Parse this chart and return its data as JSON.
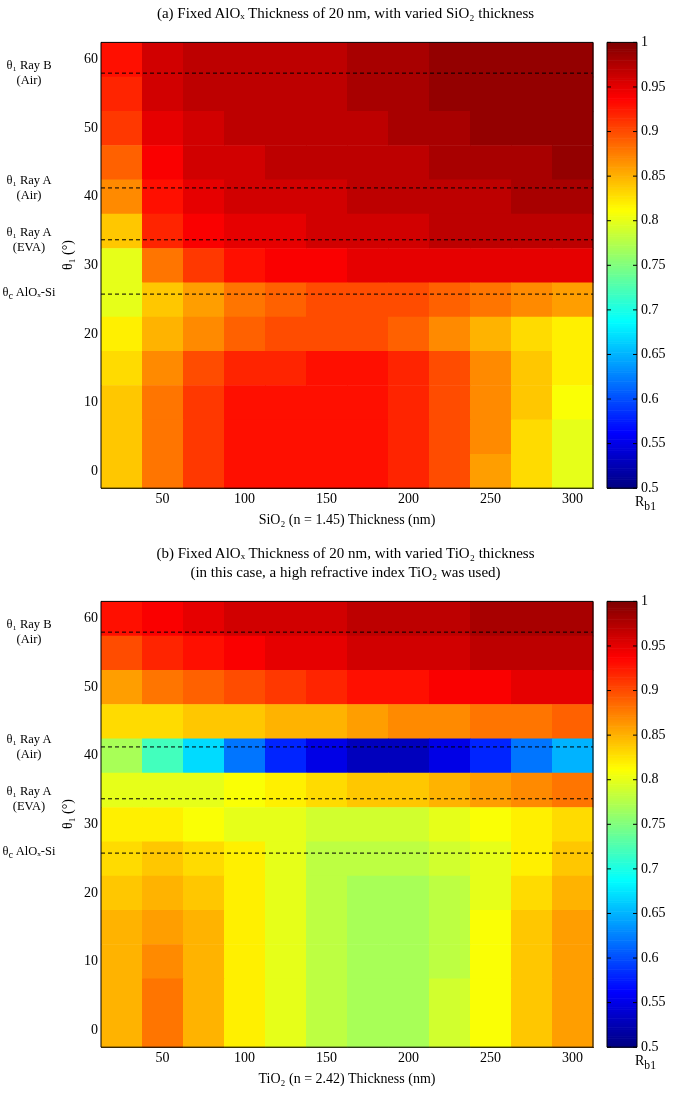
{
  "chart_data": [
    {
      "type": "heatmap",
      "title": "(a)  Fixed AlOₓ Thickness of 20 nm, with varied SiO₂ thickness",
      "xlabel": "SiO₂ (n = 1.45) Thickness (nm)",
      "ylabel": "θ₁ (°)",
      "clabel": "R$_{b1}$",
      "categories": [
        null,
        "50",
        null,
        "100",
        null,
        "150",
        null,
        "200",
        null,
        "250",
        null,
        "300"
      ],
      "y_categories": [
        "60",
        null,
        "50",
        null,
        "40",
        null,
        "30",
        null,
        "20",
        null,
        "10",
        null,
        "0"
      ],
      "clim": [
        0.5,
        1
      ],
      "cticks": [
        0.5,
        0.55,
        0.6,
        0.65,
        0.7,
        0.75,
        0.8,
        0.85,
        0.9,
        0.95,
        1
      ],
      "cells": [
        [
          0.93,
          0.96,
          0.97,
          0.97,
          0.97,
          0.97,
          0.98,
          0.98,
          0.99,
          0.99,
          0.99,
          0.99
        ],
        [
          0.92,
          0.96,
          0.97,
          0.97,
          0.97,
          0.97,
          0.98,
          0.98,
          0.99,
          0.99,
          0.99,
          0.99
        ],
        [
          0.91,
          0.95,
          0.96,
          0.97,
          0.97,
          0.97,
          0.97,
          0.98,
          0.98,
          0.99,
          0.99,
          0.99
        ],
        [
          0.89,
          0.94,
          0.96,
          0.96,
          0.97,
          0.97,
          0.97,
          0.97,
          0.98,
          0.98,
          0.98,
          0.99
        ],
        [
          0.87,
          0.93,
          0.95,
          0.96,
          0.96,
          0.96,
          0.97,
          0.97,
          0.97,
          0.97,
          0.98,
          0.98
        ],
        [
          0.84,
          0.92,
          0.94,
          0.95,
          0.95,
          0.96,
          0.96,
          0.96,
          0.97,
          0.97,
          0.97,
          0.97
        ],
        [
          0.8,
          0.88,
          0.91,
          0.93,
          0.94,
          0.94,
          0.95,
          0.95,
          0.95,
          0.95,
          0.95,
          0.95
        ],
        [
          0.8,
          0.84,
          0.86,
          0.88,
          0.89,
          0.9,
          0.9,
          0.9,
          0.89,
          0.88,
          0.87,
          0.86
        ],
        [
          0.82,
          0.85,
          0.87,
          0.89,
          0.9,
          0.9,
          0.9,
          0.89,
          0.87,
          0.85,
          0.83,
          0.82
        ],
        [
          0.83,
          0.87,
          0.9,
          0.92,
          0.92,
          0.93,
          0.93,
          0.92,
          0.9,
          0.87,
          0.84,
          0.82
        ],
        [
          0.84,
          0.88,
          0.91,
          0.93,
          0.93,
          0.93,
          0.93,
          0.92,
          0.9,
          0.87,
          0.84,
          0.81
        ],
        [
          0.84,
          0.88,
          0.91,
          0.93,
          0.93,
          0.93,
          0.93,
          0.92,
          0.9,
          0.87,
          0.83,
          0.8
        ],
        [
          0.84,
          0.88,
          0.91,
          0.93,
          0.93,
          0.93,
          0.93,
          0.92,
          0.9,
          0.86,
          0.83,
          0.8
        ]
      ],
      "annotations": [
        "θ₁ Ray B (Air)",
        "θ₁ Ray A (Air)",
        "θ₁ Ray A (EVA)",
        "θ$_{c}$ AlOₓ-Si"
      ]
    },
    {
      "type": "heatmap",
      "title": "(b)  Fixed AlOₓ Thickness of 20 nm, with varied TiO₂ thickness",
      "subtitle": "(in this case, a high refractive index TiO₂ was used)",
      "xlabel": "TiO₂ (n = 2.42) Thickness (nm)",
      "ylabel": "θ₁ (°)",
      "clabel": "R$_{b1}$",
      "categories": [
        null,
        "50",
        null,
        "100",
        null,
        "150",
        null,
        "200",
        null,
        "250",
        null,
        "300"
      ],
      "y_categories": [
        "60",
        null,
        "50",
        null,
        "40",
        null,
        "30",
        null,
        "20",
        null,
        "10",
        null,
        "0"
      ],
      "clim": [
        0.5,
        1
      ],
      "cticks": [
        0.5,
        0.55,
        0.6,
        0.65,
        0.7,
        0.75,
        0.8,
        0.85,
        0.9,
        0.95,
        1
      ],
      "cells": [
        [
          0.93,
          0.94,
          0.95,
          0.96,
          0.96,
          0.96,
          0.97,
          0.97,
          0.97,
          0.98,
          0.98,
          0.98
        ],
        [
          0.9,
          0.92,
          0.93,
          0.94,
          0.95,
          0.95,
          0.96,
          0.96,
          0.96,
          0.97,
          0.97,
          0.97
        ],
        [
          0.86,
          0.88,
          0.89,
          0.9,
          0.91,
          0.92,
          0.93,
          0.93,
          0.94,
          0.94,
          0.95,
          0.95
        ],
        [
          0.83,
          0.83,
          0.84,
          0.84,
          0.85,
          0.85,
          0.86,
          0.87,
          0.87,
          0.88,
          0.88,
          0.89
        ],
        [
          0.77,
          0.72,
          0.67,
          0.62,
          0.58,
          0.55,
          0.53,
          0.53,
          0.55,
          0.58,
          0.62,
          0.65
        ],
        [
          0.8,
          0.8,
          0.8,
          0.81,
          0.82,
          0.83,
          0.84,
          0.84,
          0.85,
          0.86,
          0.87,
          0.88
        ],
        [
          0.82,
          0.82,
          0.81,
          0.8,
          0.8,
          0.79,
          0.79,
          0.79,
          0.8,
          0.81,
          0.82,
          0.83
        ],
        [
          0.83,
          0.84,
          0.83,
          0.82,
          0.8,
          0.78,
          0.78,
          0.78,
          0.79,
          0.8,
          0.82,
          0.84
        ],
        [
          0.84,
          0.85,
          0.84,
          0.82,
          0.8,
          0.78,
          0.77,
          0.77,
          0.78,
          0.8,
          0.83,
          0.85
        ],
        [
          0.85,
          0.86,
          0.85,
          0.82,
          0.8,
          0.78,
          0.77,
          0.77,
          0.78,
          0.81,
          0.84,
          0.86
        ],
        [
          0.85,
          0.87,
          0.85,
          0.82,
          0.8,
          0.78,
          0.77,
          0.77,
          0.78,
          0.81,
          0.84,
          0.86
        ],
        [
          0.85,
          0.88,
          0.85,
          0.82,
          0.8,
          0.78,
          0.77,
          0.77,
          0.79,
          0.81,
          0.84,
          0.86
        ],
        [
          0.85,
          0.88,
          0.85,
          0.82,
          0.8,
          0.78,
          0.77,
          0.77,
          0.79,
          0.81,
          0.84,
          0.86
        ]
      ],
      "annotations": [
        "θ₁ Ray B (Air)",
        "θ₁ Ray A (Air)",
        "θ₁ Ray A (EVA)",
        "θ$_{c}$ AlOₓ-Si"
      ]
    }
  ]
}
